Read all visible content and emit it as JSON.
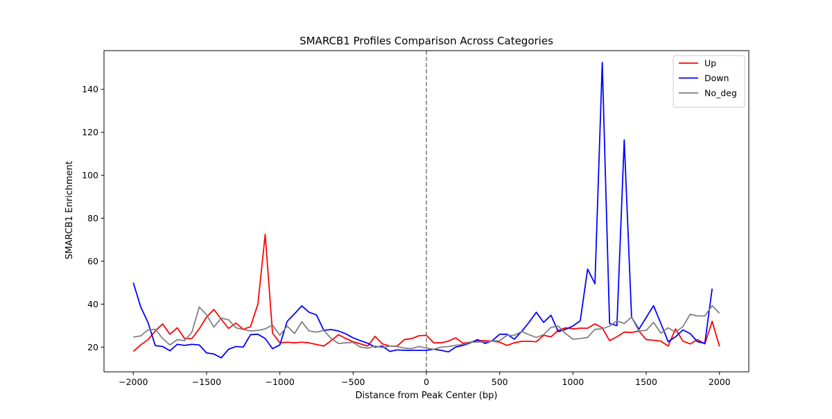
{
  "chart_data": {
    "type": "line",
    "title": "SMARCB1 Profiles Comparison Across Categories",
    "xlabel": "Distance from Peak Center (bp)",
    "ylabel": "SMARCB1 Enrichment",
    "xlim": [
      -2200,
      2200
    ],
    "ylim": [
      8.5,
      158.0
    ],
    "x_ticks": [
      -2000,
      -1500,
      -1000,
      -500,
      0,
      500,
      1000,
      1500,
      2000
    ],
    "x_tick_labels": [
      "−2000",
      "−1500",
      "−1000",
      "−500",
      "0",
      "500",
      "1000",
      "1500",
      "2000"
    ],
    "y_ticks": [
      20,
      40,
      60,
      80,
      100,
      120,
      140
    ],
    "y_tick_labels": [
      "20",
      "40",
      "60",
      "80",
      "100",
      "120",
      "140"
    ],
    "grid": false,
    "legend_position": "top-right",
    "reference_line": {
      "x": 0,
      "color": "#808080",
      "style": "dashed"
    },
    "x": [
      -2000,
      -1950,
      -1900,
      -1850,
      -1800,
      -1750,
      -1700,
      -1650,
      -1600,
      -1550,
      -1500,
      -1450,
      -1400,
      -1350,
      -1300,
      -1250,
      -1200,
      -1150,
      -1100,
      -1050,
      -1000,
      -950,
      -900,
      -850,
      -800,
      -750,
      -700,
      -650,
      -600,
      -550,
      -500,
      -450,
      -400,
      -350,
      -300,
      -250,
      -200,
      -150,
      -100,
      -50,
      0,
      50,
      100,
      150,
      200,
      250,
      300,
      350,
      400,
      450,
      500,
      550,
      600,
      650,
      700,
      750,
      800,
      850,
      900,
      950,
      1000,
      1050,
      1100,
      1150,
      1200,
      1250,
      1300,
      1350,
      1400,
      1450,
      1500,
      1550,
      1600,
      1650,
      1700,
      1750,
      1800,
      1850,
      1900,
      1950,
      2000
    ],
    "series": [
      {
        "name": "Up",
        "color": "#ff0000",
        "values": [
          18.0,
          21.0,
          23.5,
          27.5,
          30.8,
          26.0,
          29.0,
          24.0,
          24.0,
          28.5,
          34.0,
          37.5,
          33.0,
          28.7,
          31.2,
          28.3,
          29.5,
          40.0,
          72.5,
          26.5,
          22.0,
          22.3,
          22.0,
          22.3,
          22.0,
          21.2,
          20.5,
          23.0,
          25.8,
          24.0,
          22.5,
          21.5,
          20.5,
          25.0,
          21.5,
          20.5,
          20.5,
          23.5,
          24.0,
          25.3,
          25.5,
          22.0,
          22.0,
          22.8,
          24.3,
          21.8,
          22.3,
          23.0,
          23.0,
          22.8,
          22.3,
          20.8,
          22.0,
          22.7,
          22.7,
          22.5,
          25.5,
          24.8,
          27.8,
          29.0,
          28.5,
          28.8,
          28.8,
          30.8,
          29.0,
          23.0,
          24.8,
          27.0,
          26.8,
          27.5,
          23.5,
          23.2,
          22.8,
          20.5,
          28.5,
          22.8,
          21.5,
          23.5,
          21.5,
          32.0,
          20.3
        ]
      },
      {
        "name": "Down",
        "color": "#0000ff",
        "values": [
          50.0,
          38.8,
          31.5,
          20.7,
          20.3,
          18.3,
          21.3,
          20.8,
          21.3,
          21.0,
          17.3,
          16.8,
          15.0,
          19.0,
          20.3,
          20.0,
          25.8,
          26.0,
          24.0,
          19.3,
          21.0,
          32.0,
          35.5,
          39.2,
          36.2,
          35.0,
          27.8,
          28.2,
          27.5,
          26.2,
          24.3,
          23.0,
          21.8,
          20.0,
          20.5,
          18.0,
          18.7,
          18.5,
          18.5,
          18.5,
          18.5,
          19.0,
          18.5,
          17.8,
          20.0,
          20.8,
          22.0,
          23.5,
          21.7,
          23.0,
          26.0,
          26.0,
          23.7,
          27.3,
          31.5,
          36.2,
          31.5,
          34.8,
          27.2,
          28.3,
          29.8,
          32.3,
          56.3,
          49.5,
          152.5,
          31.0,
          30.0,
          116.5,
          34.0,
          28.3,
          33.8,
          39.3,
          31.0,
          22.5,
          24.8,
          28.0,
          26.3,
          22.5,
          21.8,
          47.2,
          null
        ]
      },
      {
        "name": "No_deg",
        "color": "#808080",
        "values": [
          24.7,
          25.2,
          28.0,
          28.3,
          24.0,
          21.0,
          23.5,
          23.0,
          27.0,
          38.7,
          35.0,
          29.3,
          33.5,
          32.7,
          29.0,
          28.2,
          27.5,
          27.8,
          28.5,
          30.3,
          25.5,
          29.8,
          26.3,
          31.8,
          27.5,
          27.0,
          27.8,
          24.0,
          21.7,
          22.0,
          22.2,
          20.0,
          19.5,
          20.5,
          19.8,
          20.5,
          20.3,
          19.5,
          19.3,
          20.3,
          19.5,
          19.0,
          20.0,
          20.3,
          20.8,
          21.3,
          22.3,
          22.3,
          22.5,
          22.8,
          23.0,
          25.5,
          25.5,
          27.3,
          25.8,
          24.5,
          25.8,
          29.2,
          29.8,
          26.3,
          23.7,
          24.0,
          24.5,
          28.3,
          28.5,
          29.8,
          32.2,
          31.0,
          34.0,
          27.5,
          27.8,
          31.5,
          26.5,
          29.0,
          27.0,
          29.5,
          35.3,
          34.5,
          34.5,
          39.3,
          35.8
        ]
      }
    ]
  }
}
